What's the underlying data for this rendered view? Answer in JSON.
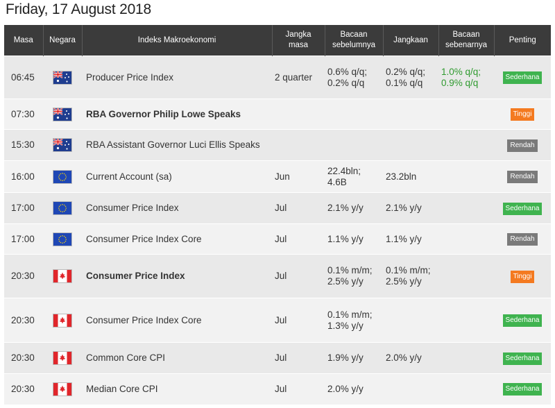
{
  "date_title": "Friday, 17 August 2018",
  "headers": {
    "time": "Masa",
    "country": "Negara",
    "indicator": "Indeks Makroekonomi",
    "period_l1": "Jangka",
    "period_l2": "masa",
    "previous_l1": "Bacaan",
    "previous_l2": "sebelumnya",
    "forecast": "Jangkaan",
    "actual_l1": "Bacaan",
    "actual_l2": "sebenarnya",
    "importance": "Penting"
  },
  "colors": {
    "header_bg": "#3b3b3b",
    "row_odd": "#e9e9e9",
    "row_even": "#f2f2f2",
    "actual_text": "#2e9a2e",
    "badge_green": "#3fb34f",
    "badge_orange": "#f47a20",
    "badge_gray": "#7a7a7a"
  },
  "rows": [
    {
      "time": "06:45",
      "flag": "australia-flag",
      "indicator": "Producer Price Index",
      "bold": false,
      "period": "2 quarter",
      "previous": "0.6% q/q; 0.2% q/q",
      "forecast": "0.2% q/q; 0.1% q/q",
      "actual": "1.0% q/q; 0.9% q/q",
      "importance": "Sederhana",
      "level": "green"
    },
    {
      "time": "07:30",
      "flag": "australia-flag",
      "indicator": "RBA Governor Philip Lowe Speaks",
      "bold": true,
      "period": "",
      "previous": "",
      "forecast": "",
      "actual": "",
      "importance": "Tinggi",
      "level": "orange"
    },
    {
      "time": "15:30",
      "flag": "australia-flag",
      "indicator": "RBA Assistant Governor Luci Ellis Speaks",
      "bold": false,
      "period": "",
      "previous": "",
      "forecast": "",
      "actual": "",
      "importance": "Rendah",
      "level": "gray"
    },
    {
      "time": "16:00",
      "flag": "eu-flag",
      "indicator": "Current Account (sa)",
      "bold": false,
      "period": "Jun",
      "previous": "22.4bln; 4.6B",
      "forecast": "23.2bln",
      "actual": "",
      "importance": "Rendah",
      "level": "gray"
    },
    {
      "time": "17:00",
      "flag": "eu-flag",
      "indicator": "Consumer Price Index",
      "bold": false,
      "period": "Jul",
      "previous": "2.1% y/y",
      "forecast": "2.1% y/y",
      "actual": "",
      "importance": "Sederhana",
      "level": "green"
    },
    {
      "time": "17:00",
      "flag": "eu-flag",
      "indicator": "Consumer Price Index Core",
      "bold": false,
      "period": "Jul",
      "previous": "1.1% y/y",
      "forecast": "1.1% y/y",
      "actual": "",
      "importance": "Rendah",
      "level": "gray"
    },
    {
      "time": "20:30",
      "flag": "canada-flag",
      "indicator": "Consumer Price Index",
      "bold": true,
      "period": "Jul",
      "previous": "0.1% m/m; 2.5% y/y",
      "forecast": "0.1% m/m; 2.5% y/y",
      "actual": "",
      "importance": "Tinggi",
      "level": "orange"
    },
    {
      "time": "20:30",
      "flag": "canada-flag",
      "indicator": "Consumer Price Index Core",
      "bold": false,
      "period": "Jul",
      "previous": "0.1% m/m; 1.3% y/y",
      "forecast": "",
      "actual": "",
      "importance": "Sederhana",
      "level": "green"
    },
    {
      "time": "20:30",
      "flag": "canada-flag",
      "indicator": "Common Core CPI",
      "bold": false,
      "period": "Jul",
      "previous": "1.9% y/y",
      "forecast": "2.0% y/y",
      "actual": "",
      "importance": "Sederhana",
      "level": "green"
    },
    {
      "time": "20:30",
      "flag": "canada-flag",
      "indicator": "Median Core CPI",
      "bold": false,
      "period": "Jul",
      "previous": "2.0% y/y",
      "forecast": "",
      "actual": "",
      "importance": "Sederhana",
      "level": "green"
    }
  ]
}
